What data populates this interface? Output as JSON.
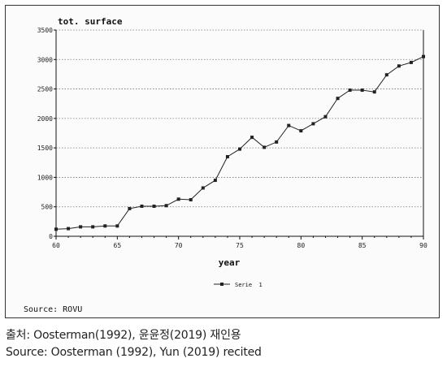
{
  "chart_data": {
    "type": "line",
    "ylabel": "tot. surface",
    "xlabel": "year",
    "x": [
      60,
      61,
      62,
      63,
      64,
      65,
      66,
      67,
      68,
      69,
      70,
      71,
      72,
      73,
      74,
      75,
      76,
      77,
      78,
      79,
      80,
      81,
      82,
      83,
      84,
      85,
      86,
      87,
      88,
      89,
      90
    ],
    "series": [
      {
        "name": "Serie 1",
        "values": [
          120,
          130,
          160,
          160,
          175,
          175,
          470,
          510,
          510,
          520,
          630,
          620,
          820,
          950,
          1350,
          1480,
          1680,
          1510,
          1600,
          1880,
          1790,
          1910,
          2030,
          2340,
          2480,
          2480,
          2450,
          2740,
          2890,
          2950,
          3050
        ]
      }
    ],
    "xlim": [
      60,
      90
    ],
    "ylim": [
      0,
      3500
    ],
    "x_ticks": [
      60,
      65,
      70,
      75,
      80,
      85,
      90
    ],
    "x_tick_labels": [
      "60",
      "65",
      "70",
      "75",
      "80",
      "85",
      "90"
    ],
    "y_ticks": [
      0,
      500,
      1000,
      1500,
      2000,
      2500,
      3000,
      3500
    ],
    "y_tick_labels": [
      "0",
      "500",
      "1000",
      "1500",
      "2000",
      "2500",
      "3000",
      "3500"
    ],
    "grid": "horizontal dotted",
    "legend_position": "bottom-center",
    "legend_label": "Serie  1",
    "colors": {
      "line": "#222222",
      "grid": "#777777"
    }
  },
  "figure": {
    "inner_source": "Source: ROVU"
  },
  "captions": {
    "korean": "출처: Oosterman(1992), 윤윤정(2019) 재인용",
    "english": "Source: Oosterman (1992), Yun (2019) recited"
  }
}
